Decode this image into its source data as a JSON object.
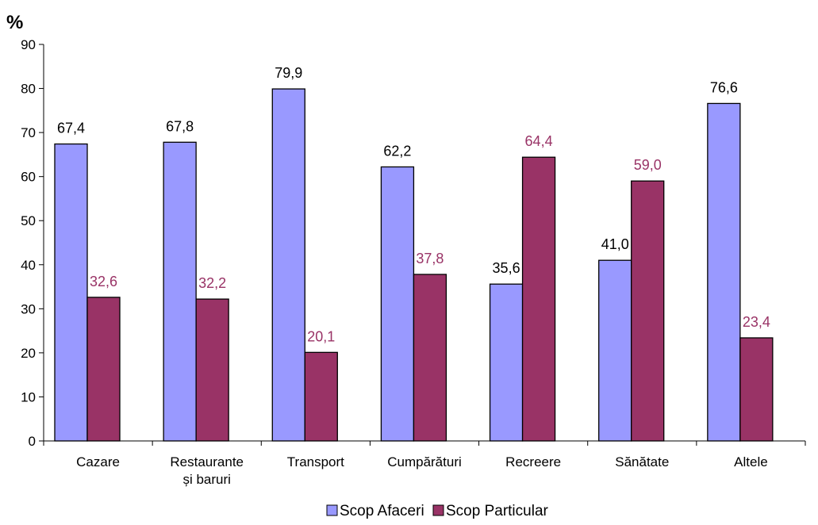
{
  "chart_data": {
    "type": "bar",
    "ylabel": "%",
    "ylim": [
      0,
      90
    ],
    "yticks": [
      0,
      10,
      20,
      30,
      40,
      50,
      60,
      70,
      80,
      90
    ],
    "grid": false,
    "legend_position": "bottom",
    "categories": [
      [
        "Cazare"
      ],
      [
        "Restaurante",
        "și baruri"
      ],
      [
        "Transport"
      ],
      [
        "Cumpărături"
      ],
      [
        "Recreere"
      ],
      [
        "Sănătate"
      ],
      [
        "Altele"
      ]
    ],
    "series": [
      {
        "name": "Scop Afaceri",
        "color": "#9999FF",
        "label_color": "#000000",
        "values": [
          67.4,
          67.8,
          79.9,
          62.2,
          35.6,
          41.0,
          76.6
        ],
        "labels": [
          "67,4",
          "67,8",
          "79,9",
          "62,2",
          "35,6",
          "41,0",
          "76,6"
        ]
      },
      {
        "name": "Scop Particular",
        "color": "#993366",
        "label_color": "#993366",
        "values": [
          32.6,
          32.2,
          20.1,
          37.8,
          64.4,
          59.0,
          23.4
        ],
        "labels": [
          "32,6",
          "32,2",
          "20,1",
          "37,8",
          "64,4",
          "59,0",
          "23,4"
        ]
      }
    ]
  }
}
